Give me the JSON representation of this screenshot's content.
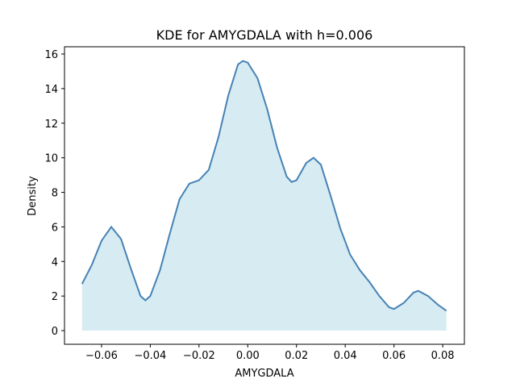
{
  "chart_data": {
    "type": "area",
    "title": "KDE for AMYGDALA with h=0.006",
    "x_label": "AMYGDALA",
    "y_label": "Density",
    "x": [
      -0.068,
      -0.064,
      -0.06,
      -0.056,
      -0.052,
      -0.048,
      -0.044,
      -0.042,
      -0.04,
      -0.036,
      -0.032,
      -0.028,
      -0.024,
      -0.02,
      -0.016,
      -0.012,
      -0.008,
      -0.004,
      -0.002,
      0.0,
      0.004,
      0.008,
      0.012,
      0.016,
      0.018,
      0.02,
      0.024,
      0.027,
      0.03,
      0.034,
      0.038,
      0.042,
      0.046,
      0.05,
      0.054,
      0.058,
      0.06,
      0.064,
      0.068,
      0.07,
      0.074,
      0.078,
      0.0815
    ],
    "series": [
      {
        "color": "#4682b4",
        "fill": "#add8e6",
        "values": [
          2.7,
          3.8,
          5.2,
          6.0,
          5.3,
          3.6,
          2.0,
          1.75,
          2.0,
          3.5,
          5.6,
          7.6,
          8.5,
          8.7,
          9.3,
          11.2,
          13.6,
          15.4,
          15.6,
          15.5,
          14.6,
          12.8,
          10.6,
          8.9,
          8.6,
          8.7,
          9.7,
          10.0,
          9.6,
          7.8,
          5.9,
          4.4,
          3.5,
          2.8,
          2.0,
          1.35,
          1.25,
          1.6,
          2.2,
          2.3,
          2.0,
          1.5,
          1.15
        ]
      }
    ],
    "xlim": [
      -0.0752,
      0.0889
    ],
    "ylim": [
      -0.79,
      16.42
    ],
    "xticks": [
      {
        "value": -0.06,
        "label": "−0.06"
      },
      {
        "value": -0.04,
        "label": "−0.04"
      },
      {
        "value": -0.02,
        "label": "−0.02"
      },
      {
        "value": 0,
        "label": "0.00"
      },
      {
        "value": 0.02,
        "label": "0.02"
      },
      {
        "value": 0.04,
        "label": "0.04"
      },
      {
        "value": 0.06,
        "label": "0.06"
      },
      {
        "value": 0.08,
        "label": "0.08"
      }
    ],
    "yticks": [
      0,
      2,
      4,
      6,
      8,
      10,
      12,
      14,
      16
    ]
  }
}
